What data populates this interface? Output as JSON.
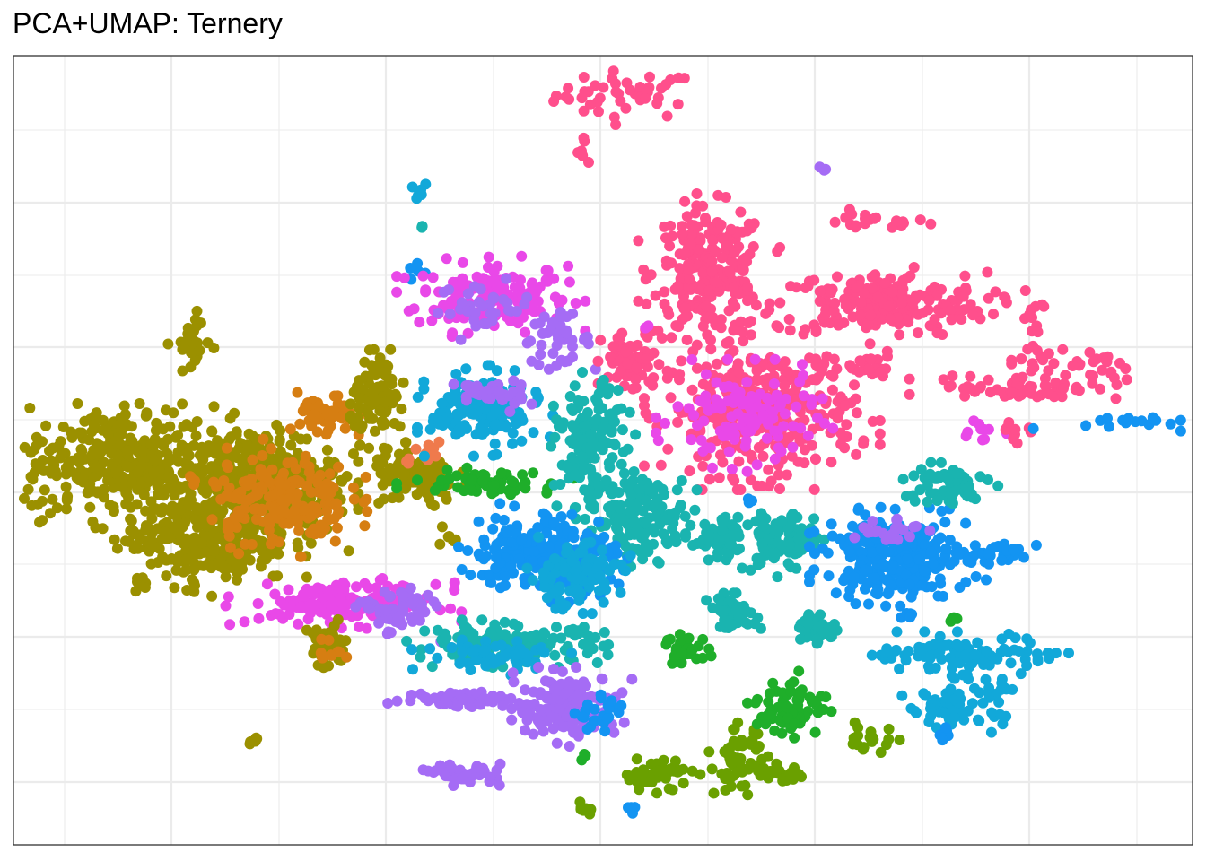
{
  "chart_data": {
    "type": "scatter",
    "title": "PCA+UMAP: Ternery",
    "xlabel": "",
    "ylabel": "",
    "xlim": [
      0,
      100
    ],
    "ylim": [
      0,
      100
    ],
    "axis_ticks_visible": false,
    "grid": true,
    "legend": "none",
    "colors": {
      "olive": "#9B9000",
      "orange": "#D67E12",
      "salmon": "#EF7A4C",
      "green": "#1FAE2A",
      "olive-green": "#6AA000",
      "teal": "#1AB4B0",
      "sky": "#12A8D9",
      "blue": "#1394F2",
      "purple": "#A56CF5",
      "magenta": "#E948E8",
      "pink": "#FF4F8C"
    },
    "clusters": [
      {
        "color": "pink",
        "x": 52.0,
        "y": 95.0,
        "sx": 3.0,
        "sy": 1.5,
        "n": 45
      },
      {
        "color": "pink",
        "x": 48.5,
        "y": 88.5,
        "sx": 0.4,
        "sy": 1.0,
        "n": 6
      },
      {
        "color": "purple",
        "x": 69.0,
        "y": 85.5,
        "sx": 0.3,
        "sy": 0.3,
        "n": 3
      },
      {
        "color": "sky",
        "x": 34.2,
        "y": 82.8,
        "sx": 0.5,
        "sy": 0.6,
        "n": 6
      },
      {
        "color": "teal",
        "x": 34.5,
        "y": 78.0,
        "sx": 0.2,
        "sy": 0.3,
        "n": 2
      },
      {
        "color": "blue",
        "x": 34.2,
        "y": 72.5,
        "sx": 0.5,
        "sy": 0.7,
        "n": 6
      },
      {
        "color": "pink",
        "x": 72.5,
        "y": 79.0,
        "sx": 2.5,
        "sy": 0.6,
        "n": 20
      },
      {
        "color": "magenta",
        "x": 40.5,
        "y": 69.5,
        "sx": 3.2,
        "sy": 2.2,
        "n": 160
      },
      {
        "color": "purple",
        "x": 40.0,
        "y": 68.0,
        "sx": 2.0,
        "sy": 1.6,
        "n": 35
      },
      {
        "color": "purple",
        "x": 46.0,
        "y": 64.0,
        "sx": 1.5,
        "sy": 1.5,
        "n": 40
      },
      {
        "color": "pink",
        "x": 59.0,
        "y": 72.5,
        "sx": 2.4,
        "sy": 4.0,
        "n": 240
      },
      {
        "color": "pink",
        "x": 73.5,
        "y": 68.5,
        "sx": 4.5,
        "sy": 2.0,
        "n": 220
      },
      {
        "color": "pink",
        "x": 86.5,
        "y": 66.0,
        "sx": 0.4,
        "sy": 2.2,
        "n": 15
      },
      {
        "color": "pink",
        "x": 89.5,
        "y": 61.0,
        "sx": 2.5,
        "sy": 1.0,
        "n": 30
      },
      {
        "color": "pink",
        "x": 72.0,
        "y": 60.5,
        "sx": 1.5,
        "sy": 1.0,
        "n": 25
      },
      {
        "color": "pink",
        "x": 52.5,
        "y": 61.0,
        "sx": 1.3,
        "sy": 2.0,
        "n": 70
      },
      {
        "color": "magenta",
        "x": 53.5,
        "y": 66.0,
        "sx": 0.2,
        "sy": 0.2,
        "n": 2
      },
      {
        "color": "pink",
        "x": 63.5,
        "y": 55.0,
        "sx": 4.0,
        "sy": 4.0,
        "n": 350
      },
      {
        "color": "magenta",
        "x": 62.0,
        "y": 54.0,
        "sx": 3.0,
        "sy": 3.0,
        "n": 120
      },
      {
        "color": "pink",
        "x": 86.0,
        "y": 58.0,
        "sx": 4.0,
        "sy": 0.8,
        "n": 60
      },
      {
        "color": "magenta",
        "x": 82.0,
        "y": 52.5,
        "sx": 1.5,
        "sy": 0.8,
        "n": 10
      },
      {
        "color": "pink",
        "x": 85.0,
        "y": 52.5,
        "sx": 1.0,
        "sy": 0.7,
        "n": 10
      },
      {
        "color": "blue",
        "x": 94.0,
        "y": 53.5,
        "sx": 3.0,
        "sy": 0.5,
        "n": 20
      },
      {
        "color": "olive",
        "x": 15.0,
        "y": 63.5,
        "sx": 0.8,
        "sy": 2.0,
        "n": 25
      },
      {
        "color": "olive",
        "x": 9.0,
        "y": 48.5,
        "sx": 4.0,
        "sy": 3.5,
        "n": 320
      },
      {
        "color": "olive",
        "x": 20.5,
        "y": 46.0,
        "sx": 3.5,
        "sy": 3.5,
        "n": 380
      },
      {
        "color": "olive",
        "x": 16.5,
        "y": 39.0,
        "sx": 3.5,
        "sy": 3.0,
        "n": 300
      },
      {
        "color": "orange",
        "x": 22.5,
        "y": 44.0,
        "sx": 3.0,
        "sy": 3.0,
        "n": 180
      },
      {
        "color": "orange",
        "x": 26.5,
        "y": 54.0,
        "sx": 1.2,
        "sy": 1.5,
        "n": 50
      },
      {
        "color": "olive",
        "x": 31.0,
        "y": 56.5,
        "sx": 1.2,
        "sy": 2.5,
        "n": 90
      },
      {
        "color": "olive",
        "x": 34.0,
        "y": 46.5,
        "sx": 1.8,
        "sy": 1.8,
        "n": 110
      },
      {
        "color": "salmon",
        "x": 34.5,
        "y": 49.5,
        "sx": 1.2,
        "sy": 0.8,
        "n": 12
      },
      {
        "color": "green",
        "x": 40.0,
        "y": 46.0,
        "sx": 3.0,
        "sy": 0.7,
        "n": 70
      },
      {
        "color": "olive",
        "x": 36.5,
        "y": 39.0,
        "sx": 0.4,
        "sy": 0.8,
        "n": 6
      },
      {
        "color": "olive",
        "x": 10.5,
        "y": 33.0,
        "sx": 0.3,
        "sy": 0.4,
        "n": 5
      },
      {
        "color": "olive",
        "x": 20.5,
        "y": 13.5,
        "sx": 0.3,
        "sy": 0.3,
        "n": 5
      },
      {
        "color": "magenta",
        "x": 28.0,
        "y": 30.5,
        "sx": 4.0,
        "sy": 1.3,
        "n": 140
      },
      {
        "color": "purple",
        "x": 32.5,
        "y": 29.5,
        "sx": 1.5,
        "sy": 1.5,
        "n": 60
      },
      {
        "color": "olive",
        "x": 26.5,
        "y": 25.0,
        "sx": 1.0,
        "sy": 1.5,
        "n": 35
      },
      {
        "color": "orange",
        "x": 27.0,
        "y": 24.5,
        "sx": 0.5,
        "sy": 0.8,
        "n": 10
      },
      {
        "color": "sky",
        "x": 40.0,
        "y": 55.0,
        "sx": 2.3,
        "sy": 2.3,
        "n": 160
      },
      {
        "color": "purple",
        "x": 40.5,
        "y": 57.0,
        "sx": 1.5,
        "sy": 1.0,
        "n": 40
      },
      {
        "color": "teal",
        "x": 49.0,
        "y": 50.0,
        "sx": 1.5,
        "sy": 4.0,
        "n": 160
      },
      {
        "color": "teal",
        "x": 53.5,
        "y": 41.5,
        "sx": 1.8,
        "sy": 2.5,
        "n": 130
      },
      {
        "color": "blue",
        "x": 45.0,
        "y": 37.0,
        "sx": 3.0,
        "sy": 2.5,
        "n": 240
      },
      {
        "color": "sky",
        "x": 47.5,
        "y": 34.0,
        "sx": 2.0,
        "sy": 2.0,
        "n": 110
      },
      {
        "color": "teal",
        "x": 42.0,
        "y": 25.5,
        "sx": 4.0,
        "sy": 1.2,
        "n": 140
      },
      {
        "color": "sky",
        "x": 41.0,
        "y": 24.0,
        "sx": 3.0,
        "sy": 1.0,
        "n": 60
      },
      {
        "color": "purple",
        "x": 38.0,
        "y": 18.5,
        "sx": 2.5,
        "sy": 0.5,
        "n": 60
      },
      {
        "color": "purple",
        "x": 47.0,
        "y": 17.5,
        "sx": 2.2,
        "sy": 2.0,
        "n": 160
      },
      {
        "color": "blue",
        "x": 50.0,
        "y": 16.5,
        "sx": 1.0,
        "sy": 1.0,
        "n": 25
      },
      {
        "color": "purple",
        "x": 38.5,
        "y": 9.0,
        "sx": 1.5,
        "sy": 0.6,
        "n": 50
      },
      {
        "color": "green",
        "x": 48.5,
        "y": 11.0,
        "sx": 0.2,
        "sy": 0.3,
        "n": 3
      },
      {
        "color": "olive-green",
        "x": 54.5,
        "y": 9.0,
        "sx": 1.5,
        "sy": 1.0,
        "n": 45
      },
      {
        "color": "olive-green",
        "x": 48.5,
        "y": 4.5,
        "sx": 0.4,
        "sy": 0.5,
        "n": 8
      },
      {
        "color": "blue",
        "x": 52.5,
        "y": 4.5,
        "sx": 0.2,
        "sy": 0.3,
        "n": 4
      },
      {
        "color": "olive-green",
        "x": 61.5,
        "y": 10.5,
        "sx": 1.0,
        "sy": 2.0,
        "n": 60
      },
      {
        "color": "olive-green",
        "x": 65.0,
        "y": 9.0,
        "sx": 1.0,
        "sy": 0.5,
        "n": 25
      },
      {
        "color": "teal",
        "x": 60.0,
        "y": 38.5,
        "sx": 1.2,
        "sy": 1.2,
        "n": 60
      },
      {
        "color": "blue",
        "x": 62.5,
        "y": 43.5,
        "sx": 0.2,
        "sy": 0.2,
        "n": 3
      },
      {
        "color": "teal",
        "x": 65.0,
        "y": 38.5,
        "sx": 1.5,
        "sy": 2.0,
        "n": 100
      },
      {
        "color": "teal",
        "x": 61.0,
        "y": 29.5,
        "sx": 1.0,
        "sy": 1.0,
        "n": 50
      },
      {
        "color": "green",
        "x": 57.0,
        "y": 24.5,
        "sx": 1.0,
        "sy": 1.0,
        "n": 35
      },
      {
        "color": "green",
        "x": 66.0,
        "y": 17.5,
        "sx": 1.5,
        "sy": 1.8,
        "n": 70
      },
      {
        "color": "olive-green",
        "x": 73.0,
        "y": 14.0,
        "sx": 1.0,
        "sy": 1.2,
        "n": 20
      },
      {
        "color": "teal",
        "x": 68.0,
        "y": 27.5,
        "sx": 1.0,
        "sy": 1.0,
        "n": 40
      },
      {
        "color": "sky",
        "x": 74.0,
        "y": 24.0,
        "sx": 0.6,
        "sy": 0.4,
        "n": 10
      },
      {
        "color": "blue",
        "x": 75.0,
        "y": 36.5,
        "sx": 3.0,
        "sy": 2.5,
        "n": 280
      },
      {
        "color": "purple",
        "x": 74.0,
        "y": 40.0,
        "sx": 1.5,
        "sy": 0.8,
        "n": 25
      },
      {
        "color": "blue",
        "x": 83.0,
        "y": 37.0,
        "sx": 1.5,
        "sy": 0.8,
        "n": 30
      },
      {
        "color": "teal",
        "x": 79.0,
        "y": 45.5,
        "sx": 1.8,
        "sy": 1.3,
        "n": 70
      },
      {
        "color": "sky",
        "x": 82.0,
        "y": 24.0,
        "sx": 3.0,
        "sy": 1.2,
        "n": 100
      },
      {
        "color": "sky",
        "x": 80.0,
        "y": 18.0,
        "sx": 2.0,
        "sy": 1.5,
        "n": 80
      },
      {
        "color": "blue",
        "x": 79.0,
        "y": 14.5,
        "sx": 0.3,
        "sy": 0.5,
        "n": 6
      },
      {
        "color": "green",
        "x": 79.5,
        "y": 28.5,
        "sx": 0.3,
        "sy": 0.3,
        "n": 5
      },
      {
        "color": "blue",
        "x": 76.0,
        "y": 29.0,
        "sx": 0.3,
        "sy": 0.4,
        "n": 5
      }
    ]
  }
}
